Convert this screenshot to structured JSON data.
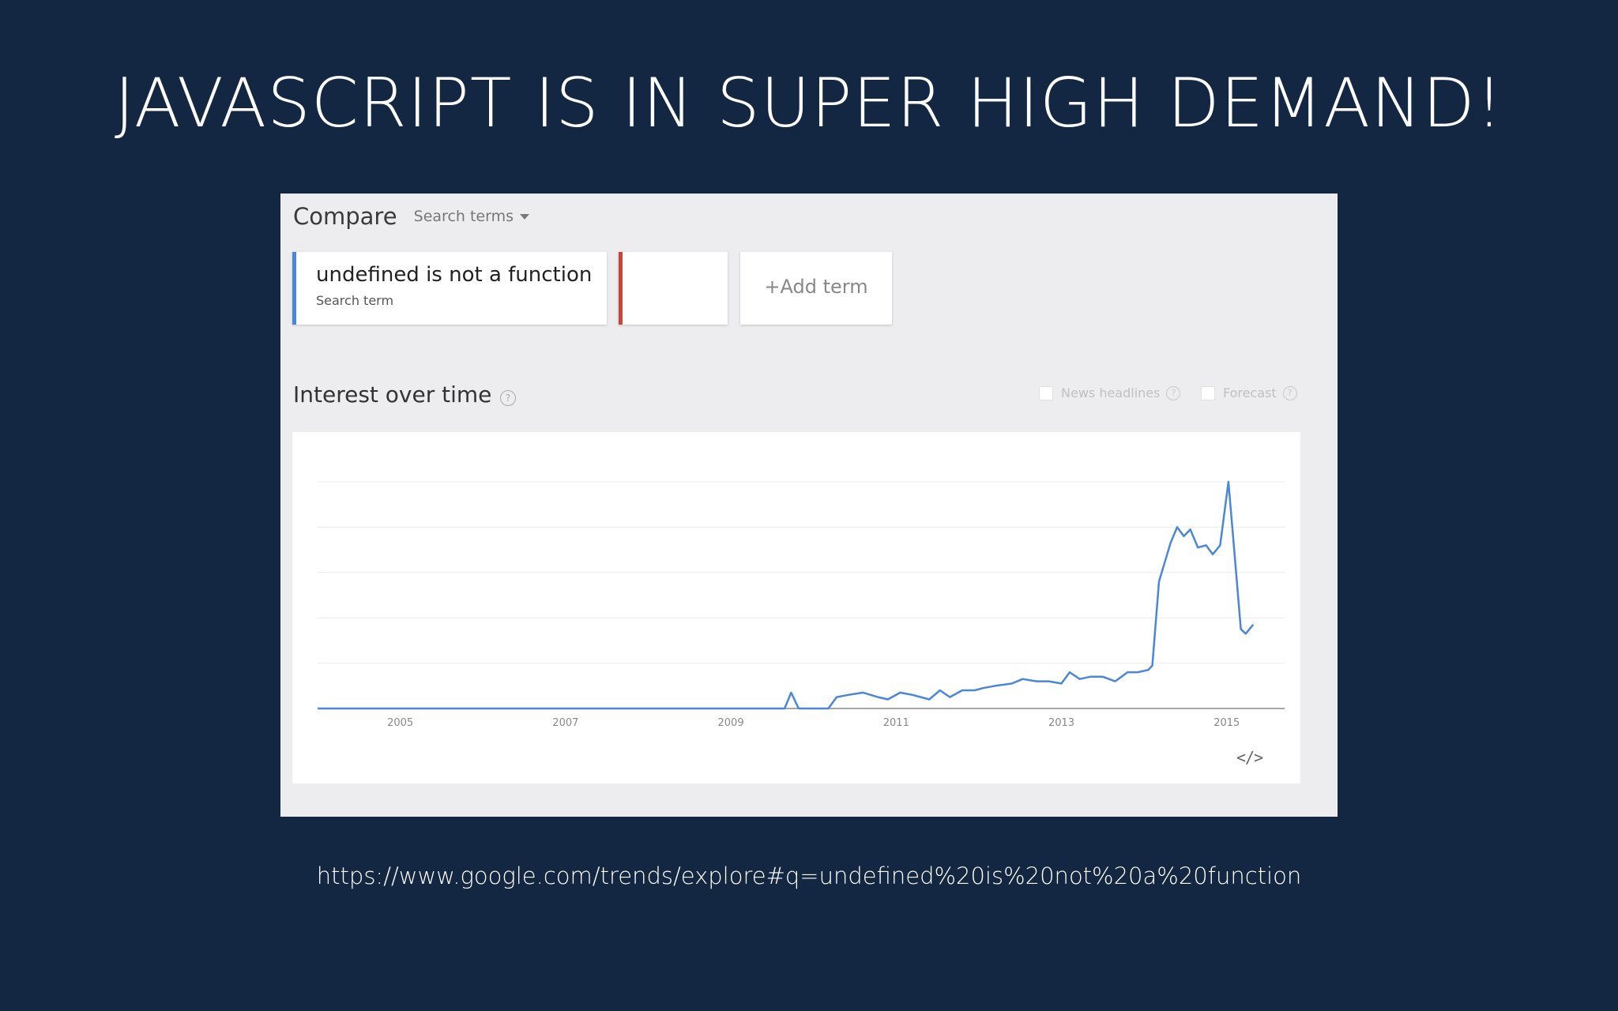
{
  "slide": {
    "title": "JAVASCRIPT IS IN SUPER HIGH DEMAND!",
    "source_url": "https://www.google.com/trends/explore#q=undefined%20is%20not%20a%20function"
  },
  "compare": {
    "label": "Compare",
    "dropdown_value": "Search terms",
    "terms": [
      {
        "value": "undefined is not a function",
        "type": "Search term",
        "color": "#4a86d9"
      },
      {
        "value": "",
        "type": "",
        "color": "#c9453a"
      }
    ],
    "add_term_label": "+Add term"
  },
  "interest": {
    "title": "Interest over time",
    "help_icon": "question-icon",
    "options": [
      {
        "label": "News headlines",
        "checked": false
      },
      {
        "label": "Forecast",
        "checked": false
      }
    ],
    "embed_icon": "code-embed-icon",
    "embed_glyph": "</>"
  },
  "chart_data": {
    "type": "line",
    "title": "",
    "xlabel": "",
    "ylabel": "",
    "grid": true,
    "ylim": [
      0,
      100
    ],
    "xlim": [
      2004.0,
      2015.7
    ],
    "x_ticks": [
      2005,
      2007,
      2009,
      2011,
      2013,
      2015
    ],
    "x_tick_labels": [
      "2005",
      "2007",
      "2009",
      "2011",
      "2013",
      "2015"
    ],
    "series": [
      {
        "color": "#4a86d9",
        "x": [
          2004.0,
          2009.65,
          2009.73,
          2009.82,
          2010.18,
          2010.28,
          2010.42,
          2010.6,
          2010.78,
          2010.9,
          2011.05,
          2011.2,
          2011.4,
          2011.53,
          2011.65,
          2011.8,
          2011.95,
          2012.05,
          2012.2,
          2012.4,
          2012.53,
          2012.7,
          2012.85,
          2013.0,
          2013.1,
          2013.22,
          2013.35,
          2013.5,
          2013.65,
          2013.8,
          2013.92,
          2014.05,
          2014.1,
          2014.18,
          2014.32,
          2014.4,
          2014.48,
          2014.56,
          2014.65,
          2014.75,
          2014.83,
          2014.92,
          2015.02,
          2015.1,
          2015.17,
          2015.23,
          2015.32
        ],
        "y": [
          0,
          0,
          7,
          0,
          0,
          5,
          6,
          7,
          5,
          4,
          7,
          6,
          4,
          8,
          5,
          8,
          8,
          9,
          10,
          11,
          13,
          12,
          12,
          11,
          16,
          13,
          14,
          14,
          12,
          16,
          16,
          17,
          19,
          56,
          73,
          80,
          76,
          79,
          71,
          72,
          68,
          72,
          100,
          66,
          35,
          33,
          37
        ]
      }
    ]
  }
}
